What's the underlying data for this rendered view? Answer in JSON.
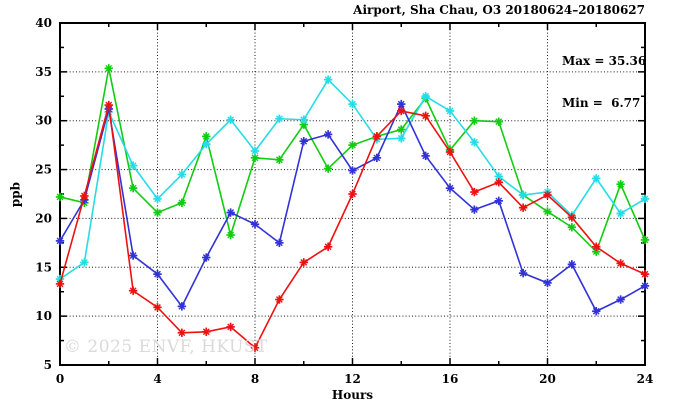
{
  "title": "Airport, Sha Chau, O3 20180624–20180627",
  "stats": {
    "max_label": "Max = 35.36",
    "min_label": "Min =  6.77"
  },
  "watermark": "© 2025 ENVF, HKUST",
  "chart_data": {
    "type": "line",
    "title": "Airport, Sha Chau, O3 20180624–20180627",
    "xlabel": "Hours",
    "ylabel": "ppb",
    "xlim": [
      0,
      24
    ],
    "ylim": [
      5,
      40
    ],
    "xticks": [
      0,
      4,
      8,
      12,
      16,
      20,
      24
    ],
    "yticks": [
      5,
      10,
      15,
      20,
      25,
      30,
      35,
      40
    ],
    "x_minor_step": 2,
    "y_minor_step": 2.5,
    "grid": true,
    "legend": "none",
    "marker": "asterisk",
    "max": 35.36,
    "min": 6.77,
    "x": [
      0,
      1,
      2,
      3,
      4,
      5,
      6,
      7,
      8,
      9,
      10,
      11,
      12,
      13,
      14,
      15,
      16,
      17,
      18,
      19,
      20,
      21,
      22,
      23,
      24
    ],
    "series": [
      {
        "name": "green",
        "color": "#11cc11",
        "values": [
          22.2,
          21.6,
          35.36,
          23.1,
          20.6,
          21.6,
          28.4,
          18.3,
          26.2,
          26.0,
          29.6,
          25.1,
          27.5,
          28.4,
          29.1,
          32.3,
          27.0,
          30.0,
          29.9,
          22.4,
          20.7,
          19.1,
          16.6,
          23.5,
          17.8
        ]
      },
      {
        "name": "cyan",
        "color": "#25dde6",
        "values": [
          13.8,
          15.5,
          30.9,
          25.4,
          22.0,
          24.5,
          27.6,
          30.1,
          26.9,
          30.2,
          30.1,
          34.2,
          31.7,
          28.1,
          28.2,
          32.5,
          31.0,
          27.8,
          24.3,
          22.4,
          22.7,
          20.3,
          24.1,
          20.5,
          22.0
        ]
      },
      {
        "name": "blue",
        "color": "#3232d8",
        "values": [
          17.7,
          21.9,
          31.2,
          16.2,
          14.3,
          11.0,
          16.0,
          20.6,
          19.4,
          17.5,
          27.9,
          28.6,
          24.9,
          26.2,
          31.7,
          26.4,
          23.1,
          20.9,
          21.8,
          14.4,
          13.4,
          15.3,
          10.5,
          11.7,
          13.1
        ]
      },
      {
        "name": "red",
        "color": "#ee1111",
        "values": [
          13.3,
          22.3,
          31.6,
          12.6,
          10.9,
          8.3,
          8.4,
          8.9,
          6.77,
          11.7,
          15.5,
          17.1,
          22.5,
          28.4,
          31.0,
          30.5,
          26.8,
          22.7,
          23.7,
          21.1,
          22.4,
          20.1,
          17.1,
          15.4,
          14.3
        ]
      }
    ]
  }
}
